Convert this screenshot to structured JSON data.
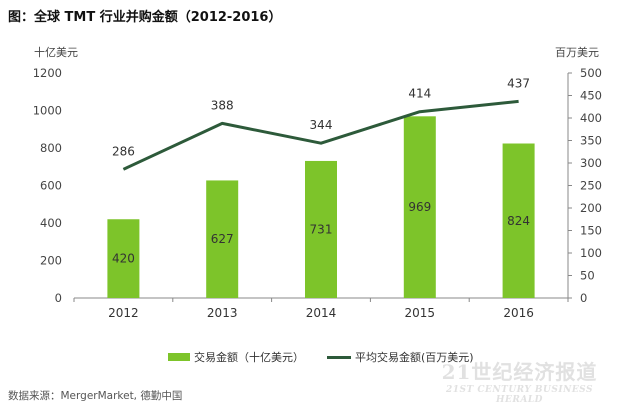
{
  "title": "图：全球 TMT 行业并购金额（2012-2016）",
  "colors": {
    "bar": "#7dc42a",
    "line": "#2d5a3a",
    "axis": "#888888"
  },
  "chart_data": {
    "type": "bar+line",
    "categories": [
      "2012",
      "2013",
      "2014",
      "2015",
      "2016"
    ],
    "y_left": {
      "unit_label": "十亿美元",
      "ylim": [
        0,
        1200
      ],
      "ticks": [
        0,
        200,
        400,
        600,
        800,
        1000,
        1200
      ]
    },
    "y_right": {
      "unit_label": "百万美元",
      "ylim": [
        0,
        500
      ],
      "ticks": [
        0,
        50,
        100,
        150,
        200,
        250,
        300,
        350,
        400,
        450,
        500
      ]
    },
    "series": [
      {
        "name": "交易金额（十亿美元）",
        "type": "bar",
        "axis": "left",
        "values": [
          420,
          627,
          731,
          969,
          824
        ]
      },
      {
        "name": "平均交易金额(百万美元)",
        "type": "line",
        "axis": "right",
        "values": [
          286,
          388,
          344,
          414,
          437
        ]
      }
    ],
    "legend_position": "bottom"
  },
  "source": "数据来源：MergerMarket, 德勤中国",
  "watermark": {
    "line1": "21世纪经济报道",
    "line2": "21ST CENTURY BUSINESS HERALD"
  }
}
